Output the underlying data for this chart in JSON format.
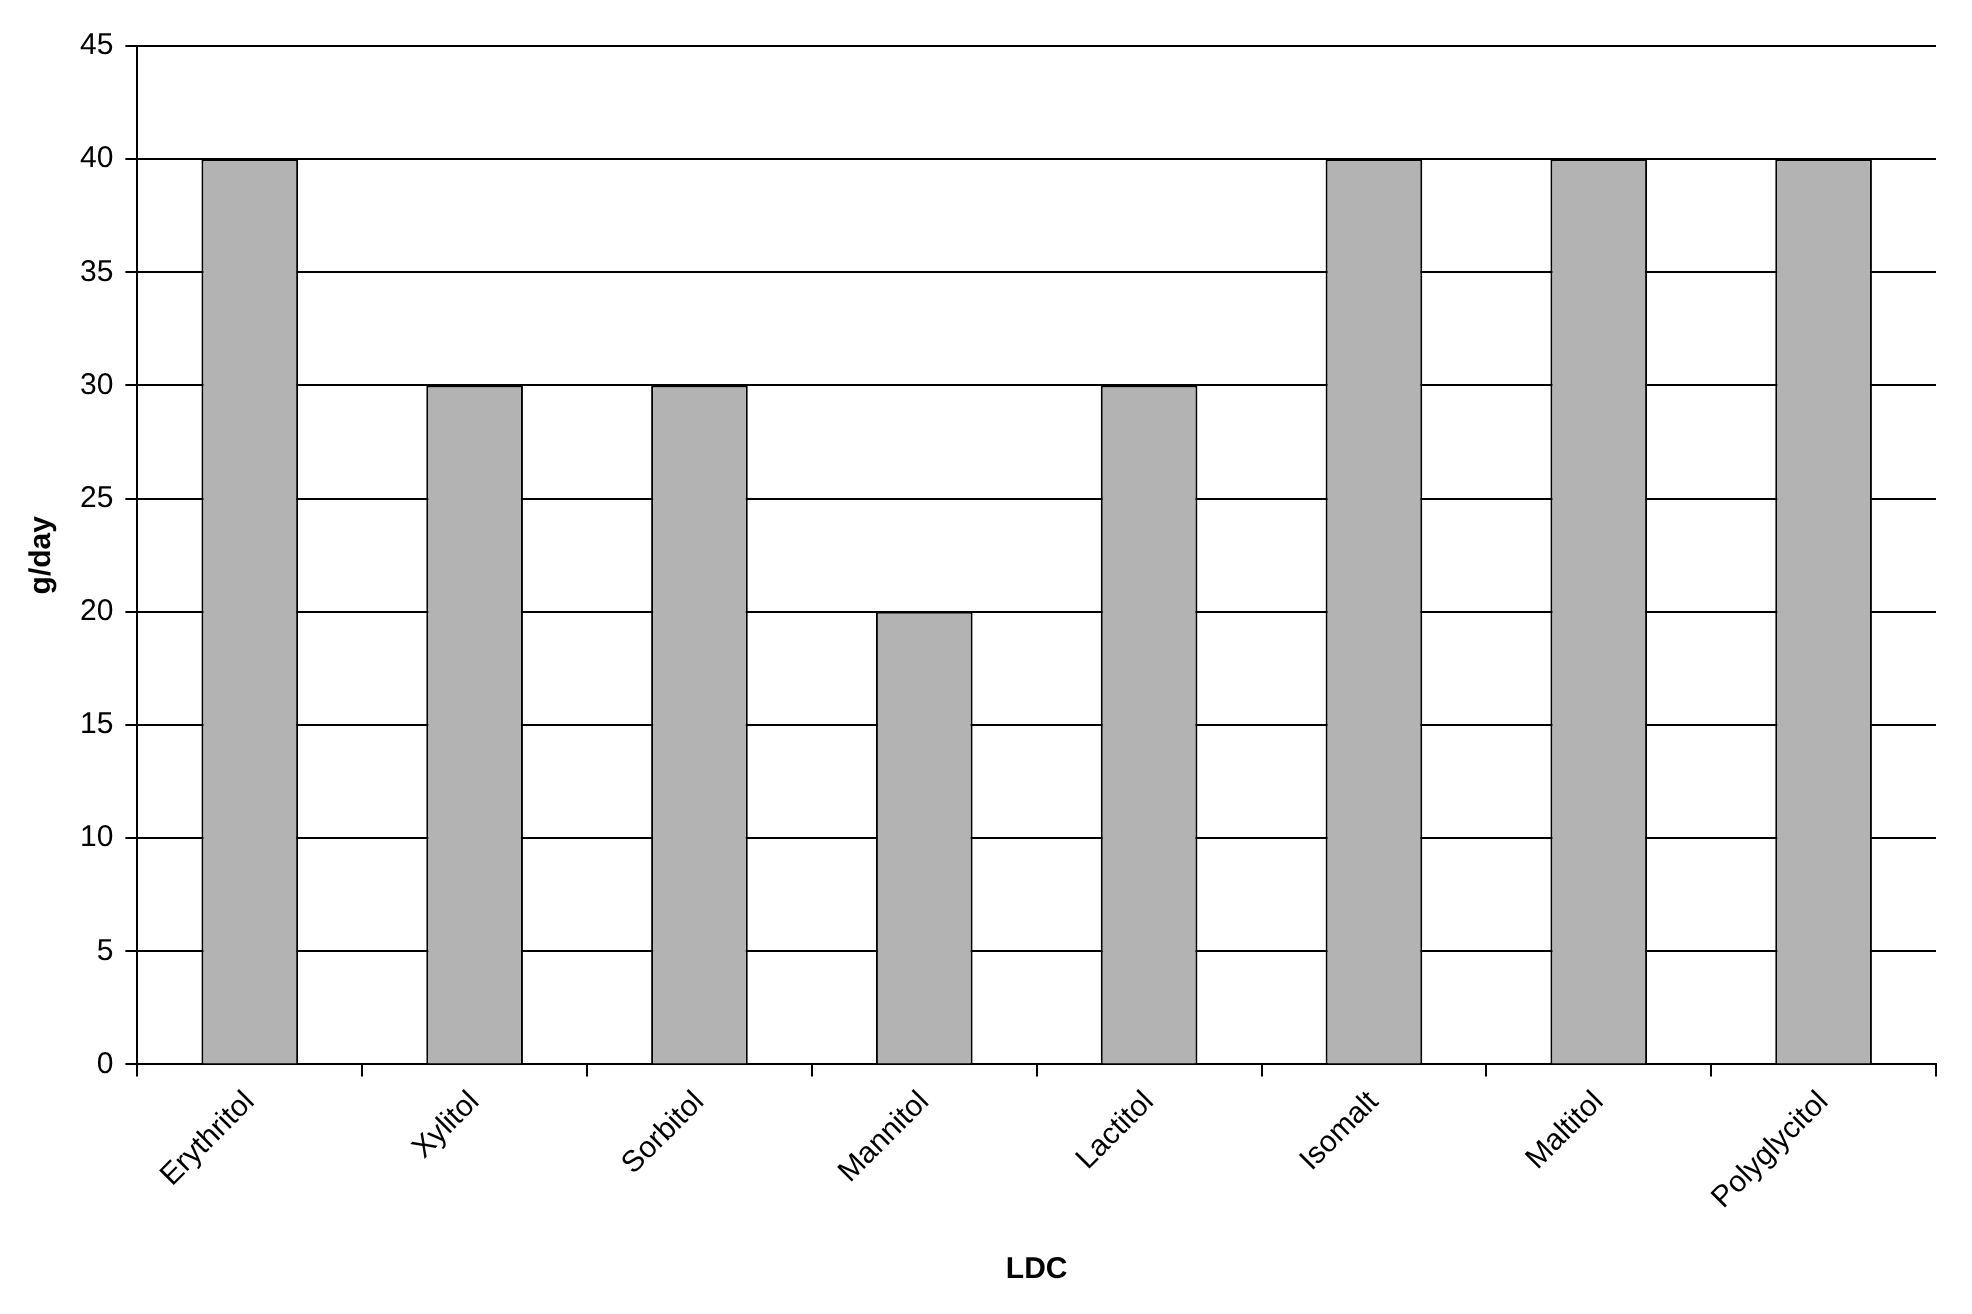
{
  "chart_data": {
    "type": "bar",
    "xlabel": "LDC",
    "ylabel": "g/day",
    "categories": [
      "Erythritol",
      "Xylitol",
      "Sorbitol",
      "Mannitol",
      "Lactitol",
      "Isomalt",
      "Maltitol",
      "Polyglycitol"
    ],
    "values": [
      40,
      30,
      30,
      20,
      30,
      40,
      40,
      40
    ],
    "color": "#b3b3b3",
    "ylim": [
      0,
      45
    ],
    "yticks": [
      0,
      5,
      10,
      15,
      20,
      25,
      30,
      35,
      40,
      45
    ],
    "grid": "y",
    "legend": false
  }
}
